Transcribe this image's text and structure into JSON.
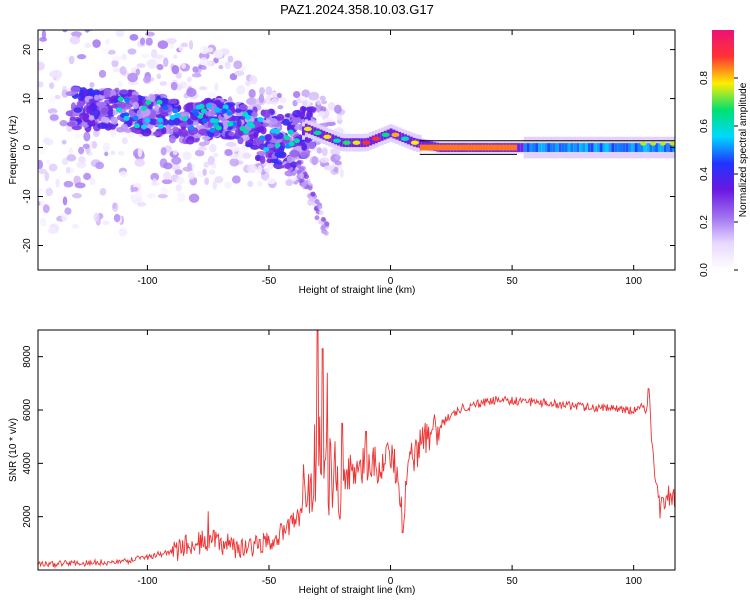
{
  "figure_title": "PAZ1.2024.358.10.03.G17",
  "colors": {
    "snr_line": "#ee3333",
    "colormap": [
      "#ffffff",
      "#e8d8ff",
      "#a070f0",
      "#6a18e0",
      "#2233ff",
      "#00d8ff",
      "#00e070",
      "#ffee00",
      "#ff3333",
      "#ee1177"
    ]
  },
  "chart_data": [
    {
      "type": "heatmap",
      "xlabel": "Height of straight line (km)",
      "ylabel": "Frequency (Hz)",
      "xlim": [
        -145,
        117
      ],
      "ylim": [
        -25,
        24
      ],
      "xticks": [
        -100,
        -50,
        0,
        50,
        100
      ],
      "yticks": [
        -20,
        -10,
        0,
        10,
        20
      ],
      "grid": false,
      "colorbar": {
        "label": "Normalized spectral amplitude",
        "range": [
          0.0,
          1.0
        ],
        "ticks": [
          0.0,
          0.2,
          0.4,
          0.6,
          0.8
        ]
      },
      "ridge": {
        "x": [
          -140,
          -120,
          -100,
          -85,
          -70,
          -60,
          -50,
          -40,
          -35,
          -30,
          -20,
          -10,
          0,
          10,
          20,
          30,
          40,
          50,
          60,
          70,
          80,
          90,
          100,
          110,
          117
        ],
        "frequency": [
          8,
          8,
          7,
          5,
          6,
          5,
          2,
          1,
          4,
          3,
          1,
          1,
          3,
          1,
          0,
          0,
          0,
          0,
          0,
          0,
          0,
          0,
          0,
          0,
          0
        ]
      }
    },
    {
      "type": "line",
      "xlabel": "Height of straight line (km)",
      "ylabel": "SNR (10 * v/v)",
      "xlim": [
        -145,
        117
      ],
      "ylim": [
        0,
        9000
      ],
      "xticks": [
        -100,
        -50,
        0,
        50,
        100
      ],
      "yticks": [
        2000,
        4000,
        6000,
        8000
      ],
      "grid": false,
      "series": [
        {
          "x": [
            -145,
            -130,
            -110,
            -100,
            -90,
            -80,
            -75,
            -70,
            -65,
            -60,
            -55,
            -50,
            -45,
            -40,
            -36,
            -34,
            -32,
            -30,
            -28,
            -26,
            -24,
            -20,
            -15,
            -10,
            -5,
            0,
            3,
            5,
            8,
            10,
            15,
            20,
            25,
            30,
            35,
            40,
            45,
            50,
            55,
            60,
            70,
            80,
            90,
            100,
            104,
            106,
            107,
            108,
            109,
            110,
            111,
            112,
            114,
            117
          ],
          "y": [
            200,
            250,
            300,
            500,
            700,
            1000,
            1100,
            1000,
            900,
            800,
            900,
            1000,
            1400,
            1800,
            2200,
            3000,
            3500,
            4500,
            4800,
            3800,
            3600,
            3500,
            3800,
            4000,
            3900,
            4200,
            3800,
            1600,
            4200,
            4400,
            5000,
            5400,
            5800,
            6100,
            6200,
            6300,
            6400,
            6350,
            6300,
            6300,
            6200,
            6100,
            6050,
            6000,
            6100,
            6500,
            5800,
            4200,
            3500,
            2800,
            2200,
            2600,
            2800,
            2700
          ],
          "peaks": [
            [
              -75,
              2200
            ],
            [
              -30,
              9000
            ],
            [
              -28,
              8300
            ],
            [
              -26,
              7400
            ],
            [
              -20,
              5500
            ],
            [
              -10,
              5200
            ],
            [
              5,
              1400
            ],
            [
              106,
              6800
            ]
          ]
        }
      ]
    }
  ]
}
